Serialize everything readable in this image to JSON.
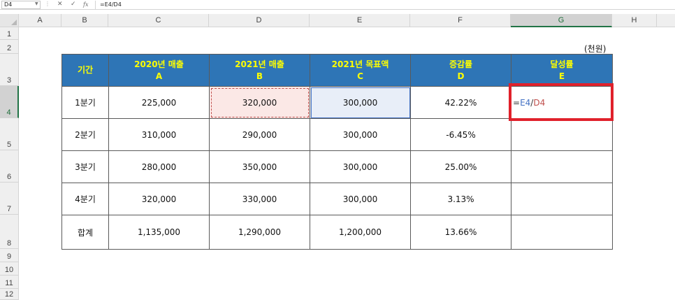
{
  "formula_bar": {
    "name_box": "D4",
    "formula": "=E4/D4",
    "dots_icon": "⋮",
    "cancel_icon": "✕",
    "enter_icon": "✓",
    "fx_icon": "fx"
  },
  "columns": [
    "A",
    "B",
    "C",
    "D",
    "E",
    "F",
    "G",
    "H"
  ],
  "rows": [
    "1",
    "2",
    "3",
    "4",
    "5",
    "6",
    "7",
    "8",
    "9",
    "10",
    "11",
    "12"
  ],
  "unit_note": "(천원)",
  "table": {
    "headers": [
      {
        "line1": "기간",
        "line2": ""
      },
      {
        "line1": "2020년 매출",
        "line2": "A"
      },
      {
        "line1": "2021년 매출",
        "line2": "B"
      },
      {
        "line1": "2021년 목표액",
        "line2": "C"
      },
      {
        "line1": "증감률",
        "line2": "D"
      },
      {
        "line1": "달성률",
        "line2": "E"
      }
    ],
    "rows": [
      [
        "1분기",
        "225,000",
        "320,000",
        "300,000",
        "42.22%",
        ""
      ],
      [
        "2분기",
        "310,000",
        "290,000",
        "300,000",
        "-6.45%",
        ""
      ],
      [
        "3분기",
        "280,000",
        "350,000",
        "300,000",
        "25.00%",
        ""
      ],
      [
        "4분기",
        "320,000",
        "330,000",
        "300,000",
        "3.13%",
        ""
      ],
      [
        "합계",
        "1,135,000",
        "1,290,000",
        "1,200,000",
        "13.66%",
        ""
      ]
    ],
    "editing_formula": {
      "eq": "=",
      "ref1": "E4",
      "slash": "/",
      "ref2": "D4"
    }
  },
  "colors": {
    "header_bg": "#2e75b6",
    "header_text": "#ffff00",
    "highlight_box": "#e0212b",
    "ref_e4": "#4472c4",
    "ref_d4": "#c0504d"
  }
}
